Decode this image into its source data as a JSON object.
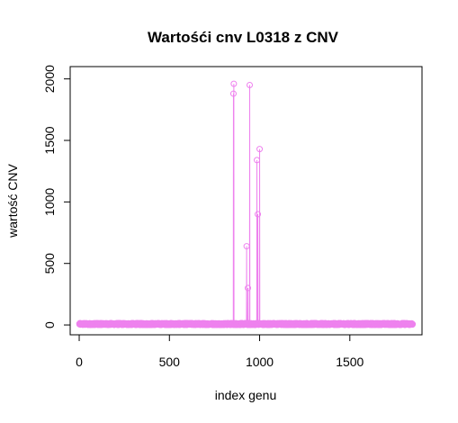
{
  "chart_data": {
    "type": "line",
    "title": "Wartośći cnv L0318 z CNV",
    "xlabel": "index genu",
    "ylabel": "wartość CNV",
    "xlim": [
      -50,
      1900
    ],
    "ylim": [
      -80,
      2100
    ],
    "x_ticks": [
      0,
      500,
      1000,
      1500
    ],
    "x_tick_labels": [
      "0",
      "500",
      "1000",
      "1500"
    ],
    "y_ticks": [
      0,
      500,
      1000,
      1500,
      2000
    ],
    "y_tick_labels": [
      "0",
      "500",
      "1000",
      "1500",
      "2000"
    ],
    "grid": false,
    "legend": "none",
    "n_points": 1848,
    "baseline_range": [
      0,
      15
    ],
    "series": [
      {
        "color": "#EE82EE",
        "marker": "open-circle",
        "peaks": [
          {
            "x": 855,
            "y": 1880
          },
          {
            "x": 857,
            "y": 1960
          },
          {
            "x": 928,
            "y": 640
          },
          {
            "x": 935,
            "y": 300
          },
          {
            "x": 945,
            "y": 1950
          },
          {
            "x": 985,
            "y": 1340
          },
          {
            "x": 990,
            "y": 900
          },
          {
            "x": 1000,
            "y": 1430
          }
        ]
      }
    ]
  }
}
